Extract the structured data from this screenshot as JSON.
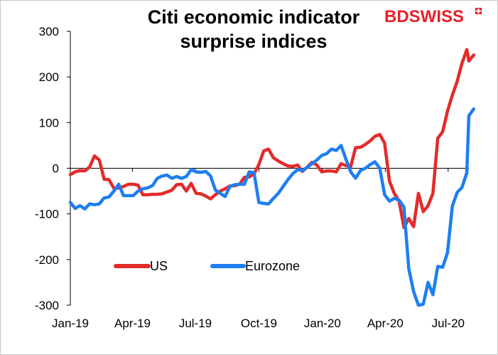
{
  "chart_data": {
    "type": "line",
    "title_lines": [
      "Citi economic indicator",
      "surprise indices"
    ],
    "xlabel": "",
    "ylabel": "",
    "ylim": [
      -300,
      300
    ],
    "yticks": [
      300,
      200,
      100,
      0,
      -100,
      -200,
      -300
    ],
    "y_tick_labels": [
      "300",
      "200",
      "100",
      "0",
      "-100",
      "-200",
      "-300"
    ],
    "x_ticks": [
      {
        "label": "Jan-19",
        "date": "2019-01-01"
      },
      {
        "label": "Apr-19",
        "date": "2019-04-01"
      },
      {
        "label": "Jul-19",
        "date": "2019-07-01"
      },
      {
        "label": "Oct-19",
        "date": "2019-10-01"
      },
      {
        "label": "Jan-20",
        "date": "2020-01-01"
      },
      {
        "label": "Apr-20",
        "date": "2020-04-01"
      },
      {
        "label": "Jul-20",
        "date": "2020-07-01"
      }
    ],
    "x_range": [
      "2019-01-01",
      "2020-07-31"
    ],
    "grid": false,
    "legend": "bottom-left",
    "series": [
      {
        "name": "US",
        "color": "#e32b2b",
        "points": [
          [
            "2019-01-01",
            -14
          ],
          [
            "2019-01-08",
            -8
          ],
          [
            "2019-01-15",
            -5
          ],
          [
            "2019-01-22",
            -6
          ],
          [
            "2019-01-29",
            3
          ],
          [
            "2019-02-05",
            27
          ],
          [
            "2019-02-12",
            18
          ],
          [
            "2019-02-19",
            -24
          ],
          [
            "2019-02-26",
            -25
          ],
          [
            "2019-03-05",
            -44
          ],
          [
            "2019-03-12",
            -43
          ],
          [
            "2019-03-19",
            -40
          ],
          [
            "2019-03-26",
            -35
          ],
          [
            "2019-04-02",
            -35
          ],
          [
            "2019-04-09",
            -37
          ],
          [
            "2019-04-16",
            -58
          ],
          [
            "2019-04-23",
            -58
          ],
          [
            "2019-04-30",
            -57
          ],
          [
            "2019-05-07",
            -57
          ],
          [
            "2019-05-14",
            -56
          ],
          [
            "2019-05-21",
            -52
          ],
          [
            "2019-05-28",
            -48
          ],
          [
            "2019-06-04",
            -36
          ],
          [
            "2019-06-11",
            -35
          ],
          [
            "2019-06-18",
            -50
          ],
          [
            "2019-06-25",
            -33
          ],
          [
            "2019-07-02",
            -55
          ],
          [
            "2019-07-09",
            -56
          ],
          [
            "2019-07-16",
            -61
          ],
          [
            "2019-07-23",
            -67
          ],
          [
            "2019-07-30",
            -58
          ],
          [
            "2019-08-06",
            -50
          ],
          [
            "2019-08-13",
            -45
          ],
          [
            "2019-08-20",
            -39
          ],
          [
            "2019-08-27",
            -38
          ],
          [
            "2019-09-03",
            -35
          ],
          [
            "2019-09-10",
            -20
          ],
          [
            "2019-09-17",
            -19
          ],
          [
            "2019-09-24",
            -12
          ],
          [
            "2019-10-01",
            8
          ],
          [
            "2019-10-08",
            38
          ],
          [
            "2019-10-15",
            42
          ],
          [
            "2019-10-22",
            23
          ],
          [
            "2019-10-29",
            16
          ],
          [
            "2019-11-05",
            10
          ],
          [
            "2019-11-12",
            5
          ],
          [
            "2019-11-19",
            4
          ],
          [
            "2019-11-26",
            7
          ],
          [
            "2019-12-03",
            -7
          ],
          [
            "2019-12-10",
            3
          ],
          [
            "2019-12-17",
            13
          ],
          [
            "2019-12-24",
            7
          ],
          [
            "2019-12-31",
            -8
          ],
          [
            "2020-01-07",
            -6
          ],
          [
            "2020-01-14",
            -6
          ],
          [
            "2020-01-21",
            -8
          ],
          [
            "2020-01-28",
            10
          ],
          [
            "2020-02-04",
            6
          ],
          [
            "2020-02-11",
            4
          ],
          [
            "2020-02-18",
            45
          ],
          [
            "2020-02-25",
            46
          ],
          [
            "2020-03-03",
            52
          ],
          [
            "2020-03-10",
            60
          ],
          [
            "2020-03-17",
            70
          ],
          [
            "2020-03-24",
            74
          ],
          [
            "2020-03-31",
            55
          ],
          [
            "2020-04-07",
            -28
          ],
          [
            "2020-04-14",
            -55
          ],
          [
            "2020-04-21",
            -72
          ],
          [
            "2020-04-28",
            -130
          ],
          [
            "2020-05-05",
            -110
          ],
          [
            "2020-05-12",
            -128
          ],
          [
            "2020-05-19",
            -55
          ],
          [
            "2020-05-26",
            -95
          ],
          [
            "2020-06-02",
            -82
          ],
          [
            "2020-06-09",
            -55
          ],
          [
            "2020-06-16",
            66
          ],
          [
            "2020-06-23",
            80
          ],
          [
            "2020-06-30",
            125
          ],
          [
            "2020-07-07",
            160
          ],
          [
            "2020-07-14",
            190
          ],
          [
            "2020-07-21",
            230
          ],
          [
            "2020-07-28",
            260
          ],
          [
            "2020-07-31",
            235
          ],
          [
            "2020-08-07",
            248
          ]
        ]
      },
      {
        "name": "Eurozone",
        "color": "#1e7ef2",
        "points": [
          [
            "2019-01-01",
            -75
          ],
          [
            "2019-01-08",
            -88
          ],
          [
            "2019-01-15",
            -82
          ],
          [
            "2019-01-22",
            -89
          ],
          [
            "2019-01-29",
            -78
          ],
          [
            "2019-02-05",
            -80
          ],
          [
            "2019-02-12",
            -78
          ],
          [
            "2019-02-19",
            -65
          ],
          [
            "2019-02-26",
            -63
          ],
          [
            "2019-03-05",
            -50
          ],
          [
            "2019-03-12",
            -35
          ],
          [
            "2019-03-19",
            -60
          ],
          [
            "2019-03-26",
            -60
          ],
          [
            "2019-04-02",
            -60
          ],
          [
            "2019-04-09",
            -50
          ],
          [
            "2019-04-16",
            -45
          ],
          [
            "2019-04-23",
            -43
          ],
          [
            "2019-04-30",
            -38
          ],
          [
            "2019-05-07",
            -22
          ],
          [
            "2019-05-14",
            -17
          ],
          [
            "2019-05-21",
            -15
          ],
          [
            "2019-05-28",
            -22
          ],
          [
            "2019-06-04",
            -18
          ],
          [
            "2019-06-11",
            -22
          ],
          [
            "2019-06-18",
            -18
          ],
          [
            "2019-06-25",
            -3
          ],
          [
            "2019-07-02",
            -8
          ],
          [
            "2019-07-09",
            -9
          ],
          [
            "2019-07-16",
            -7
          ],
          [
            "2019-07-23",
            -17
          ],
          [
            "2019-07-30",
            -48
          ],
          [
            "2019-08-06",
            -55
          ],
          [
            "2019-08-13",
            -62
          ],
          [
            "2019-08-20",
            -40
          ],
          [
            "2019-08-27",
            -36
          ],
          [
            "2019-09-03",
            -35
          ],
          [
            "2019-09-10",
            -35
          ],
          [
            "2019-09-17",
            -8
          ],
          [
            "2019-09-24",
            -10
          ],
          [
            "2019-10-01",
            -75
          ],
          [
            "2019-10-08",
            -77
          ],
          [
            "2019-10-15",
            -78
          ],
          [
            "2019-10-22",
            -66
          ],
          [
            "2019-10-29",
            -55
          ],
          [
            "2019-11-05",
            -40
          ],
          [
            "2019-11-12",
            -25
          ],
          [
            "2019-11-19",
            -12
          ],
          [
            "2019-11-26",
            -3
          ],
          [
            "2019-12-03",
            -5
          ],
          [
            "2019-12-10",
            2
          ],
          [
            "2019-12-17",
            10
          ],
          [
            "2019-12-24",
            18
          ],
          [
            "2019-12-31",
            28
          ],
          [
            "2020-01-07",
            32
          ],
          [
            "2020-01-14",
            42
          ],
          [
            "2020-01-21",
            39
          ],
          [
            "2020-01-28",
            50
          ],
          [
            "2020-02-04",
            20
          ],
          [
            "2020-02-11",
            -8
          ],
          [
            "2020-02-18",
            -22
          ],
          [
            "2020-02-25",
            -5
          ],
          [
            "2020-03-03",
            0
          ],
          [
            "2020-03-10",
            8
          ],
          [
            "2020-03-17",
            14
          ],
          [
            "2020-03-24",
            0
          ],
          [
            "2020-03-31",
            -58
          ],
          [
            "2020-04-07",
            -72
          ],
          [
            "2020-04-14",
            -66
          ],
          [
            "2020-04-21",
            -70
          ],
          [
            "2020-04-28",
            -85
          ],
          [
            "2020-05-05",
            -220
          ],
          [
            "2020-05-12",
            -270
          ],
          [
            "2020-05-19",
            -300
          ],
          [
            "2020-05-26",
            -298
          ],
          [
            "2020-06-02",
            -250
          ],
          [
            "2020-06-09",
            -277
          ],
          [
            "2020-06-16",
            -215
          ],
          [
            "2020-06-23",
            -217
          ],
          [
            "2020-06-30",
            -185
          ],
          [
            "2020-07-07",
            -83
          ],
          [
            "2020-07-14",
            -53
          ],
          [
            "2020-07-21",
            -42
          ],
          [
            "2020-07-28",
            -10
          ],
          [
            "2020-07-31",
            115
          ],
          [
            "2020-08-07",
            130
          ]
        ]
      }
    ]
  },
  "branding": {
    "logo_text": "BDSWISS",
    "logo_color": "#e8202a"
  }
}
